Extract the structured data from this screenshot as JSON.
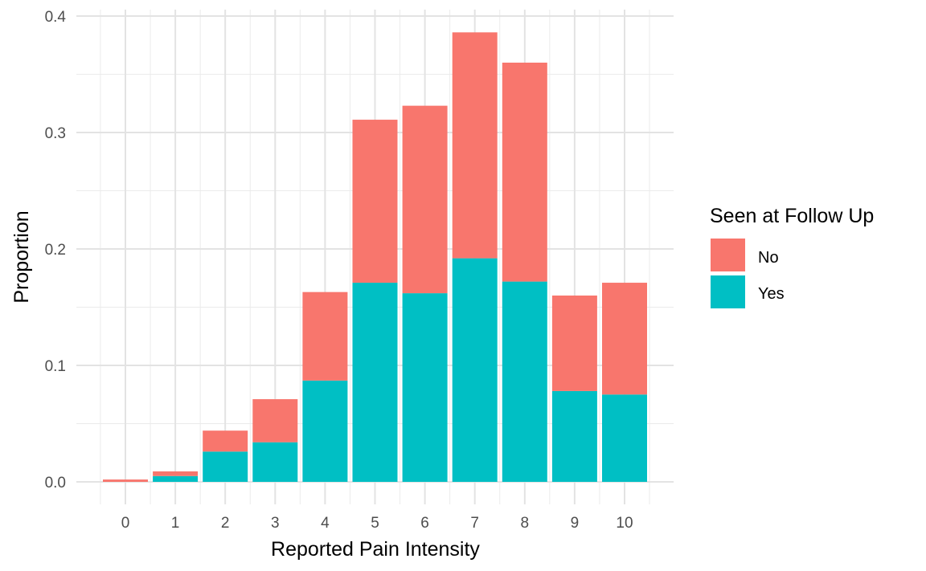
{
  "chart_data": {
    "type": "bar",
    "stacked": true,
    "title": "",
    "xlabel": "Reported Pain Intensity",
    "ylabel": "Proportion",
    "categories": [
      "0",
      "1",
      "2",
      "3",
      "4",
      "5",
      "6",
      "7",
      "8",
      "9",
      "10"
    ],
    "ylim": [
      0,
      0.4
    ],
    "y_ticks": [
      "0.0",
      "0.1",
      "0.2",
      "0.3",
      "0.4"
    ],
    "grid": true,
    "legend": {
      "title": "Seen at Follow Up",
      "position": "right",
      "items": [
        {
          "label": "No",
          "color": "#F8766D"
        },
        {
          "label": "Yes",
          "color": "#00BFC4"
        }
      ]
    },
    "series": [
      {
        "name": "Yes",
        "color": "#00BFC4",
        "values": [
          0.0,
          0.005,
          0.026,
          0.034,
          0.087,
          0.171,
          0.162,
          0.192,
          0.172,
          0.078,
          0.075
        ]
      },
      {
        "name": "No",
        "color": "#F8766D",
        "values": [
          0.002,
          0.004,
          0.018,
          0.037,
          0.076,
          0.14,
          0.161,
          0.194,
          0.188,
          0.082,
          0.096
        ]
      }
    ]
  }
}
